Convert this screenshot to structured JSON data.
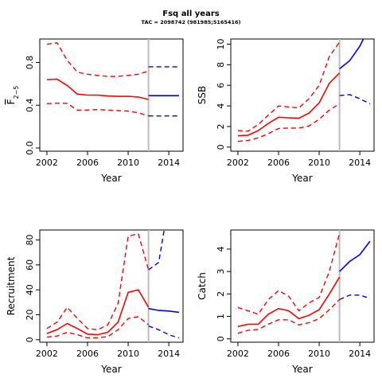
{
  "figure": {
    "title": "Fsq all years",
    "subtitle": "TAC = 2098742 (981985;5165416)"
  },
  "colors": {
    "history": "#ff0000",
    "forecast": "#0000ff",
    "divider": "#bebebe"
  },
  "chart_data": [
    {
      "id": "fbar",
      "type": "line",
      "ylabel_main": "F",
      "ylabel_sub": "2−5",
      "xlabel": "Year",
      "xlim": [
        2001.3,
        2015.4
      ],
      "ylim": [
        -0.03,
        1.02
      ],
      "xticks": [
        "2002",
        "2006",
        "2010",
        "2014"
      ],
      "yticks": [
        "0.0",
        "0.4",
        "0.8"
      ],
      "divider_year": 2012,
      "history": {
        "x": [
          2002,
          2003,
          2004,
          2005,
          2006,
          2007,
          2008,
          2009,
          2010,
          2011,
          2012
        ],
        "median": [
          0.64,
          0.645,
          0.585,
          0.505,
          0.495,
          0.495,
          0.487,
          0.483,
          0.483,
          0.477,
          0.455
        ],
        "lower": [
          0.415,
          0.42,
          0.418,
          0.355,
          0.355,
          0.36,
          0.355,
          0.35,
          0.345,
          0.33,
          0.3
        ],
        "upper": [
          0.97,
          0.985,
          0.82,
          0.71,
          0.69,
          0.68,
          0.67,
          0.67,
          0.68,
          0.69,
          0.72
        ]
      },
      "forecast": {
        "x": [
          2012,
          2013,
          2014,
          2015
        ],
        "median": [
          0.49,
          0.49,
          0.49,
          0.49
        ],
        "lower": [
          0.3,
          0.3,
          0.3,
          0.3
        ],
        "upper": [
          0.76,
          0.76,
          0.76,
          0.76
        ]
      }
    },
    {
      "id": "ssb",
      "type": "line",
      "ylabel": "SSB",
      "xlabel": "Year",
      "xlim": [
        2001.3,
        2015.4
      ],
      "ylim": [
        -0.4,
        10.5
      ],
      "xticks": [
        "2002",
        "2006",
        "2010",
        "2014"
      ],
      "yticks": [
        "0",
        "2",
        "4",
        "6",
        "8",
        "10"
      ],
      "divider_year": 2012,
      "history": {
        "x": [
          2002,
          2003,
          2004,
          2005,
          2006,
          2007,
          2008,
          2009,
          2010,
          2011,
          2012
        ],
        "median": [
          1.1,
          1.15,
          1.6,
          2.3,
          2.9,
          2.85,
          2.8,
          3.3,
          4.3,
          6.2,
          7.2
        ],
        "lower": [
          0.55,
          0.65,
          0.9,
          1.3,
          1.8,
          1.85,
          1.85,
          2.05,
          2.7,
          3.6,
          4.2
        ],
        "upper": [
          1.6,
          1.55,
          2.2,
          3.1,
          4.0,
          3.9,
          3.8,
          4.7,
          6.0,
          8.8,
          10.2
        ]
      },
      "forecast": {
        "x": [
          2012,
          2013,
          2014,
          2015
        ],
        "median": [
          7.6,
          8.4,
          9.8,
          11.8
        ],
        "lower": [
          5.0,
          5.1,
          4.7,
          4.2
        ],
        "upper": [
          10.5,
          12.5,
          14.0,
          15.0
        ]
      }
    },
    {
      "id": "recruitment",
      "type": "line",
      "ylabel": "Recruitment",
      "xlabel": "Year",
      "xlim": [
        2001.3,
        2015.4
      ],
      "ylim": [
        -2,
        88
      ],
      "xticks": [
        "2002",
        "2006",
        "2010",
        "2014"
      ],
      "yticks": [
        "0",
        "20",
        "40",
        "60",
        "80"
      ],
      "divider_year": 2012,
      "history": {
        "x": [
          2002,
          2003,
          2004,
          2005,
          2006,
          2007,
          2008,
          2009,
          2010,
          2011,
          2012
        ],
        "median": [
          5,
          8,
          13,
          9,
          4.5,
          4,
          6,
          14,
          38,
          40,
          26
        ],
        "lower": [
          2,
          3,
          6,
          4,
          1.5,
          1.5,
          2.5,
          8,
          17,
          18.5,
          12
        ],
        "upper": [
          9,
          14,
          26,
          17,
          9,
          8,
          12,
          29,
          83,
          85,
          56
        ]
      },
      "forecast": {
        "x": [
          2012,
          2013,
          2014,
          2015
        ],
        "median": [
          25,
          23.5,
          23,
          22
        ],
        "lower": [
          11,
          8,
          4,
          1.5
        ],
        "upper": [
          56,
          62,
          110,
          150
        ]
      }
    },
    {
      "id": "catch",
      "type": "line",
      "ylabel": "Catch",
      "xlabel": "Year",
      "xlim": [
        2001.3,
        2015.4
      ],
      "ylim": [
        -0.15,
        4.85
      ],
      "xticks": [
        "2002",
        "2006",
        "2010",
        "2014"
      ],
      "yticks": [
        "0",
        "1",
        "2",
        "3",
        "4"
      ],
      "divider_year": 2012,
      "history": {
        "x": [
          2002,
          2003,
          2004,
          2005,
          2006,
          2007,
          2008,
          2009,
          2010,
          2011,
          2012
        ],
        "median": [
          0.55,
          0.65,
          0.65,
          1.1,
          1.35,
          1.25,
          0.9,
          1.05,
          1.3,
          2.0,
          2.75
        ],
        "lower": [
          0.25,
          0.38,
          0.42,
          0.65,
          0.85,
          0.85,
          0.62,
          0.72,
          0.9,
          1.3,
          1.75
        ],
        "upper": [
          1.4,
          1.25,
          1.1,
          1.75,
          2.15,
          1.9,
          1.25,
          1.6,
          1.85,
          3.0,
          4.7
        ]
      },
      "forecast": {
        "x": [
          2012,
          2013,
          2014,
          2015
        ],
        "median": [
          3.0,
          3.45,
          3.75,
          4.35
        ],
        "lower": [
          1.75,
          1.95,
          1.95,
          1.8
        ],
        "upper": [
          4.9,
          5.6,
          6.2,
          6.8
        ]
      }
    }
  ]
}
